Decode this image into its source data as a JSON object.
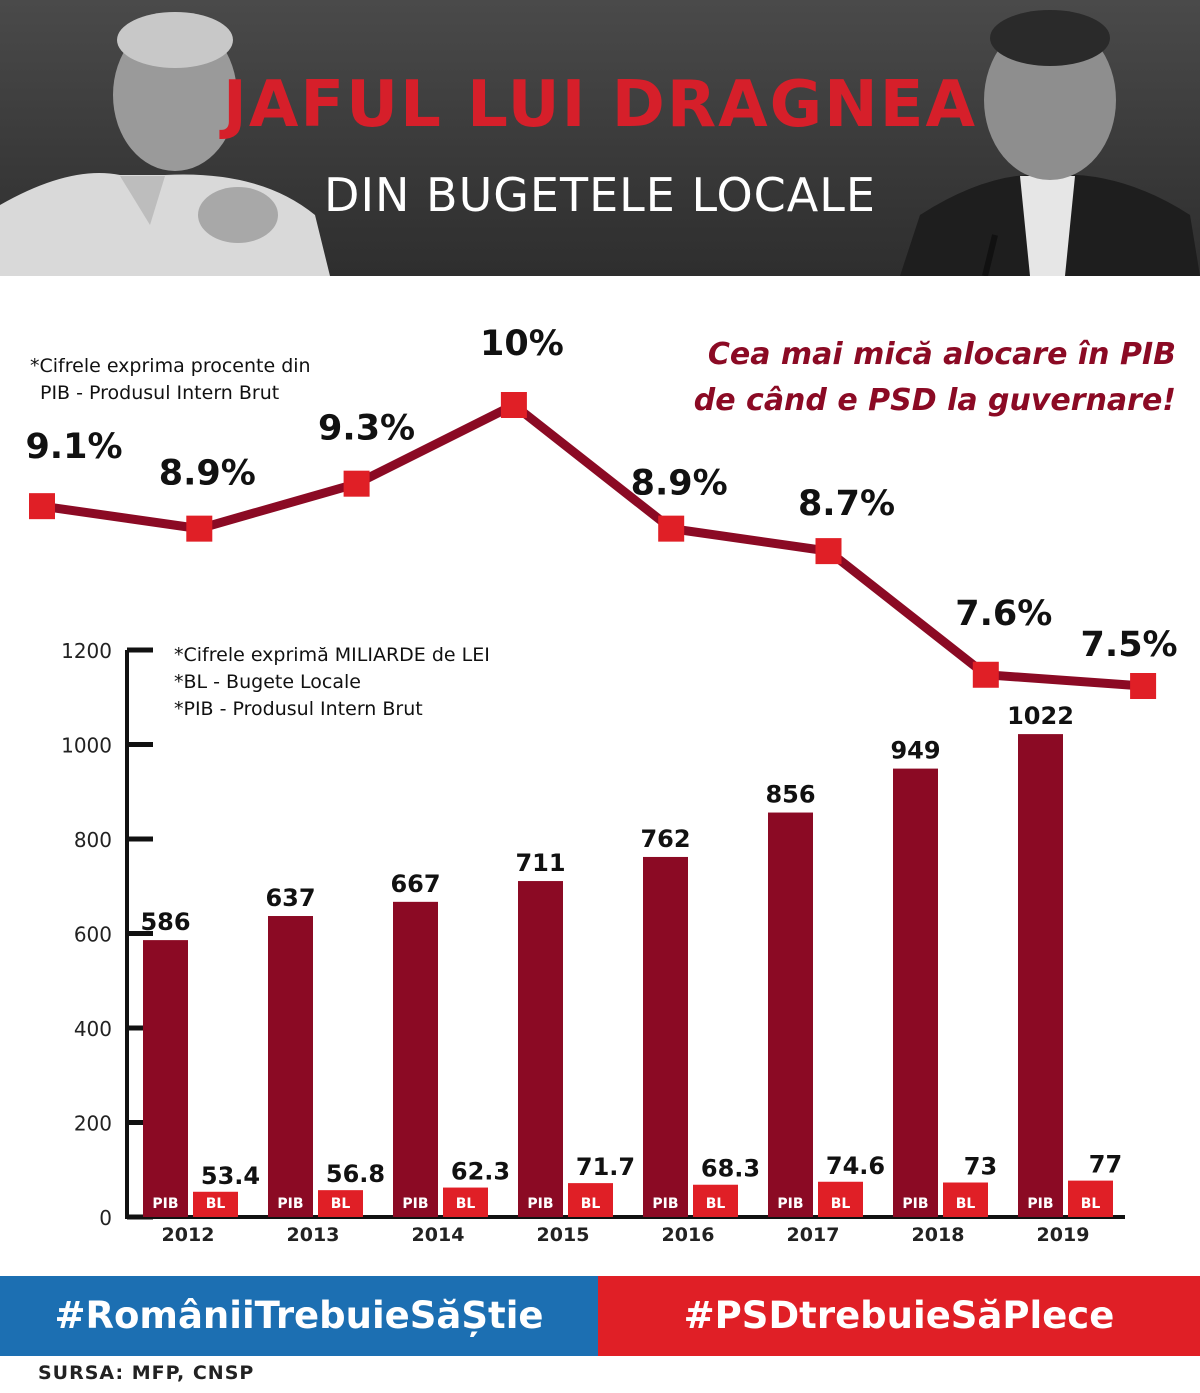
{
  "header": {
    "title": "JAFUL LUI DRAGNEA",
    "subtitle": "DIN BUGETELE LOCALE"
  },
  "notes": {
    "line_note_1": "*Cifrele exprima procente din",
    "line_note_2": "PIB - Produsul Intern Brut",
    "bar_note_1": "*Cifrele exprimă MILIARDE de LEI",
    "bar_note_2": "*BL - Bugete Locale",
    "bar_note_3": "*PIB - Produsul Intern Brut"
  },
  "headline": {
    "line1": "Cea mai mică alocare în PIB",
    "line2": "de când e PSD la guvernare!"
  },
  "chart_data": [
    {
      "type": "line",
      "x": [
        "2012",
        "2013",
        "2014",
        "2015",
        "2016",
        "2017",
        "2018",
        "2019"
      ],
      "values": [
        9.1,
        8.9,
        9.3,
        10,
        8.9,
        8.7,
        7.6,
        7.5
      ],
      "labels": [
        "9.1%",
        "8.9%",
        "9.3%",
        "10%",
        "8.9%",
        "8.7%",
        "7.6%",
        "7.5%"
      ],
      "unit": "%",
      "color": "#8b0a24",
      "marker_color": "#e01f26"
    },
    {
      "type": "bar",
      "categories": [
        "2012",
        "2013",
        "2014",
        "2015",
        "2016",
        "2017",
        "2018",
        "2019"
      ],
      "series": [
        {
          "name": "PIB",
          "values": [
            586,
            637,
            667,
            711,
            762,
            856,
            949,
            1022
          ],
          "color": "#8b0a24"
        },
        {
          "name": "BL",
          "values": [
            53.4,
            56.8,
            62.3,
            71.7,
            68.3,
            74.6,
            73,
            77
          ],
          "color": "#e01f26"
        }
      ],
      "value_labels": {
        "PIB": [
          "586",
          "637",
          "667",
          "711",
          "762",
          "856",
          "949",
          "1022"
        ],
        "BL": [
          "53.4",
          "56.8",
          "62.3",
          "71.7",
          "68.3",
          "74.6",
          "73",
          "77"
        ]
      },
      "ylim": [
        0,
        1200
      ],
      "yticks": [
        0,
        200,
        400,
        600,
        800,
        1000,
        1200
      ],
      "grid": false
    }
  ],
  "footer": {
    "hashtag_left": "#RomâniiTrebuieSăȘtie",
    "hashtag_right": "#PSDtrebuieSăPlece",
    "source": "SURSA:  MFP,  CNSP",
    "left_color": "#1c6fb2",
    "right_color": "#e01f26"
  }
}
